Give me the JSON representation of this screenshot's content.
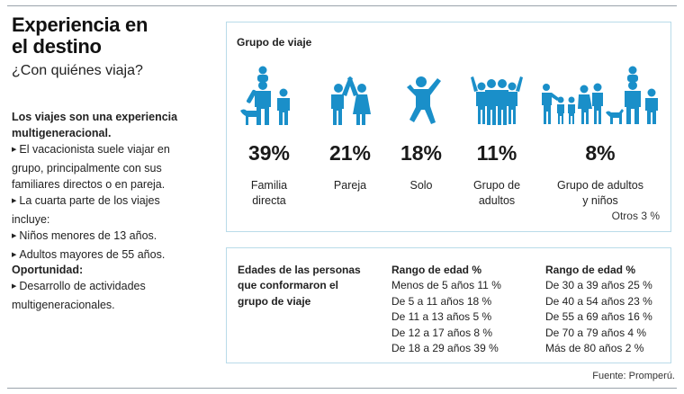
{
  "title_line1": "Experiencia en",
  "title_line2": "el destino",
  "subtitle": "¿Con quiénes viaja?",
  "side1": {
    "heading1": "Los viajes son una experiencia",
    "heading2": "multigeneracional.",
    "b1a": "El vacacionista suele viajar en",
    "b1b": "grupo, principalmente con sus",
    "b1c": "familiares directos o en pareja.",
    "b2": "La cuarta parte de los viajes incluye:",
    "b3": "Niños menores de 13 años.",
    "b4": "Adultos mayores de 55 años."
  },
  "side2": {
    "heading": "Oportunidad:",
    "b1a": "Desarrollo de actividades",
    "b1b": "multigeneracionales."
  },
  "box1_title": "Grupo de viaje",
  "groups": [
    {
      "pct": "39%",
      "l1": "Familia",
      "l2": "directa",
      "icon": "family-icon"
    },
    {
      "pct": "21%",
      "l1": "Pareja",
      "l2": "",
      "icon": "couple-icon"
    },
    {
      "pct": "18%",
      "l1": "Solo",
      "l2": "",
      "icon": "solo-icon"
    },
    {
      "pct": "11%",
      "l1": "Grupo de",
      "l2": "adultos",
      "icon": "adult-group-icon"
    },
    {
      "pct": "8%",
      "l1": "Grupo de adultos",
      "l2": "y niños",
      "icon": "adults-children-icon"
    }
  ],
  "otros": "Otros 3 %",
  "edades": {
    "l1": "Edades de las personas",
    "l2": "que conformaron el",
    "l3": "grupo de viaje"
  },
  "rango1": {
    "header": "Rango de edad %",
    "rows": [
      "Menos de 5 años 11 %",
      "De 5 a 11 años 18 %",
      "De 11 a 13 años 5 %",
      "De 12 a 17 años 8 %",
      "De 18 a 29 años 39 %"
    ]
  },
  "rango2": {
    "header": "Rango de edad %",
    "rows": [
      "De 30 a 39 años 25 %",
      "De 40 a 54 años 23 %",
      "De 55 a 69 años 16 %",
      "De 70 a 79 años 4 %",
      "Más de 80 años 2 %"
    ]
  },
  "fuente": "Fuente: Promperú.",
  "colors": {
    "accent": "#1a8fc9",
    "border": "#b9dbe9"
  }
}
